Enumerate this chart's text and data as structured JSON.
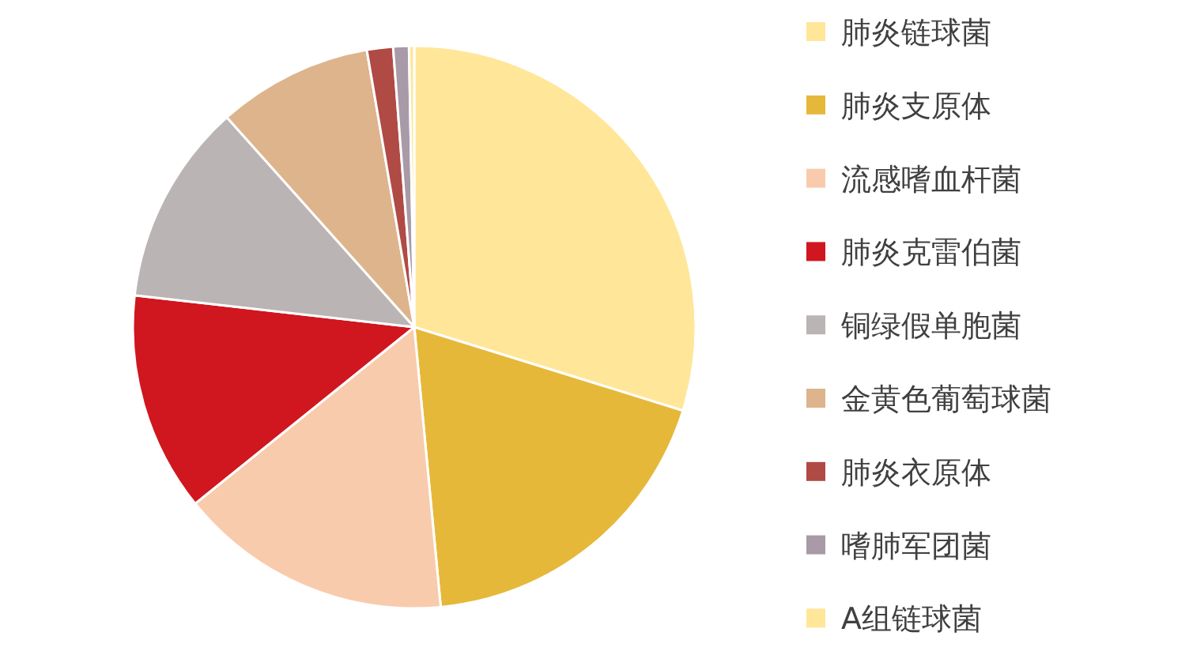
{
  "chart_data": {
    "type": "pie",
    "legend": "right",
    "categories": [
      "肺炎链球菌",
      "肺炎支原体",
      "流感嗜血杆菌",
      "肺炎克雷伯菌",
      "铜绿假单胞菌",
      "金黄色葡萄球菌",
      "肺炎衣原体",
      "嗜肺军团菌",
      "A组链球菌"
    ],
    "values": [
      29.8,
      18.7,
      15.7,
      12.6,
      11.6,
      8.9,
      1.5,
      0.9,
      0.3
    ],
    "colors": [
      "#ffe699",
      "#e6b83a",
      "#f8cbad",
      "#d0161e",
      "#bbb4b4",
      "#ddb48c",
      "#b04a45",
      "#a89aa6",
      "#ffe699"
    ]
  }
}
